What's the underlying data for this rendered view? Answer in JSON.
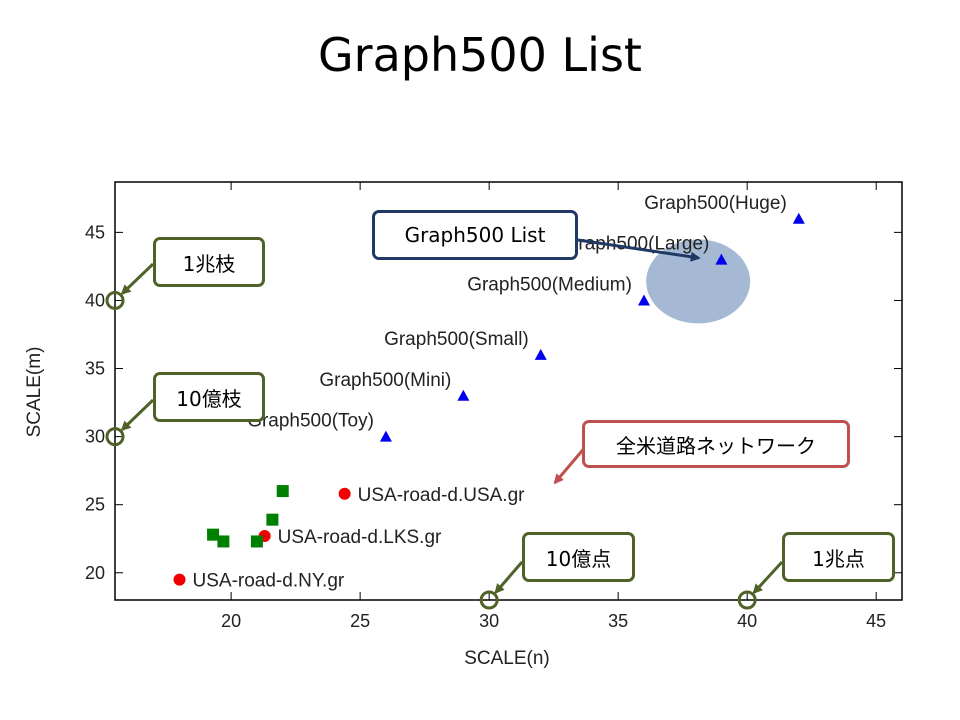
{
  "title": "Graph500 List",
  "chart_data": {
    "type": "scatter",
    "xlabel": "SCALE(n)",
    "ylabel": "SCALE(m)",
    "xlim": [
      15.5,
      46
    ],
    "ylim": [
      18,
      48.7
    ],
    "xticks": [
      20,
      25,
      30,
      35,
      40,
      45
    ],
    "yticks": [
      20,
      25,
      30,
      35,
      40,
      45
    ],
    "grid": false,
    "series": [
      {
        "marker": "triangle",
        "color": "#0000ee",
        "points": [
          {
            "x": 26,
            "y": 30,
            "label": "Graph500(Toy)"
          },
          {
            "x": 29,
            "y": 33,
            "label": "Graph500(Mini)"
          },
          {
            "x": 32,
            "y": 36,
            "label": "Graph500(Small)"
          },
          {
            "x": 36,
            "y": 40,
            "label": "Graph500(Medium)"
          },
          {
            "x": 39,
            "y": 43,
            "label": "Graph500(Large)"
          },
          {
            "x": 42,
            "y": 46,
            "label": "Graph500(Huge)"
          }
        ]
      },
      {
        "marker": "circle",
        "color": "#ee0000",
        "points": [
          {
            "x": 18,
            "y": 19.5,
            "label": "USA-road-d.NY.gr"
          },
          {
            "x": 21.3,
            "y": 22.7,
            "label": "USA-road-d.LKS.gr"
          },
          {
            "x": 24.4,
            "y": 25.8,
            "label": "USA-road-d.USA.gr"
          }
        ]
      },
      {
        "marker": "square",
        "color": "#008000",
        "points": [
          {
            "x": 19.3,
            "y": 22.8
          },
          {
            "x": 19.7,
            "y": 22.3
          },
          {
            "x": 21,
            "y": 22.3
          },
          {
            "x": 21.6,
            "y": 23.9
          },
          {
            "x": 22,
            "y": 26
          }
        ]
      }
    ],
    "highlight": {
      "x": 38.1,
      "y": 41.4,
      "color": "#8ea7c9"
    },
    "axis_markers": [
      {
        "x": 15.5,
        "y": 40
      },
      {
        "x": 15.5,
        "y": 30
      },
      {
        "x": 30,
        "y": 18
      },
      {
        "x": 40,
        "y": 18
      }
    ],
    "callouts": [
      {
        "text": "1兆枝",
        "border": "#4f6228",
        "arrow_to": [
          15.5,
          40
        ]
      },
      {
        "text": "10億枝",
        "border": "#4f6228",
        "arrow_to": [
          15.5,
          30
        ]
      },
      {
        "text": "10億点",
        "border": "#4f6228",
        "arrow_to": [
          30,
          18
        ]
      },
      {
        "text": "1兆点",
        "border": "#4f6228",
        "arrow_to": [
          40,
          18
        ]
      },
      {
        "text": "Graph500 List",
        "border": "#1f3864",
        "arrow_to": [
          38.2,
          43.1
        ]
      },
      {
        "text": "全米道路ネットワーク",
        "border": "#c0504d",
        "arrow_to": [
          32.5,
          26.5
        ]
      }
    ]
  }
}
